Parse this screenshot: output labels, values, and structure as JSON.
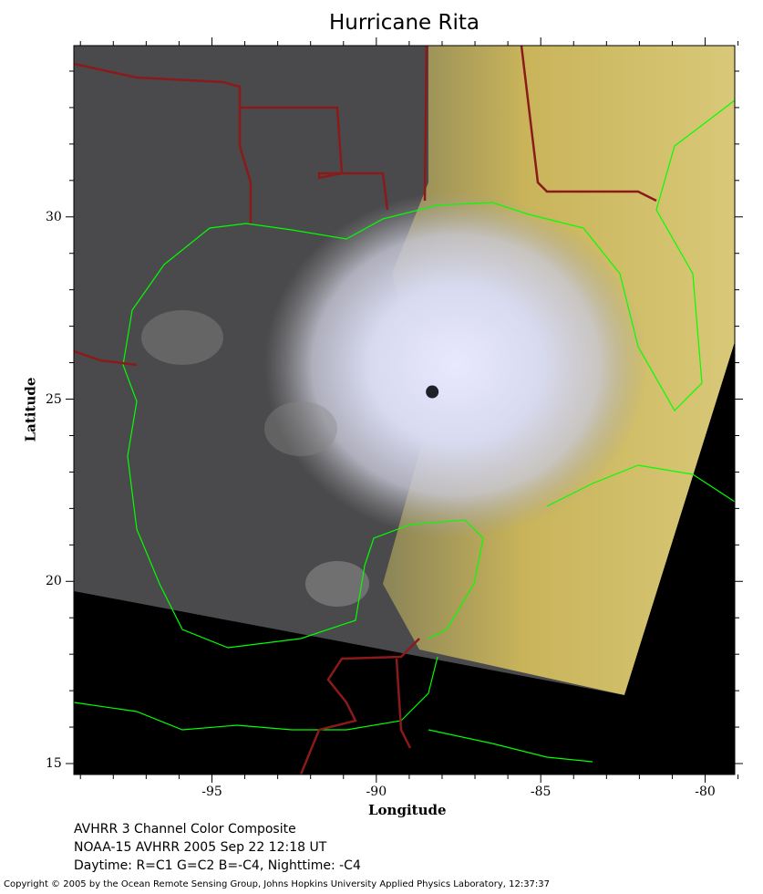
{
  "title": "Hurricane Rita",
  "axes": {
    "xlabel": "Longitude",
    "ylabel": "Latitude",
    "x_ticks": [
      "-95",
      "-90",
      "-85",
      "-80"
    ],
    "y_ticks": [
      "30",
      "25",
      "20",
      "15"
    ],
    "x_range": [
      -99.2,
      -79.1
    ],
    "y_range": [
      14.7,
      34.7
    ]
  },
  "storm_eye": {
    "lon": -88.3,
    "lat": 25.2
  },
  "caption": {
    "line1": "AVHRR 3 Channel Color Composite",
    "line2": "NOAA-15 AVHRR 2005 Sep 22 12:18 UT",
    "line3": "Daytime: R=C1 G=C2 B=-C4, Nighttime: -C4"
  },
  "copyright": "Copyright © 2005 by the Ocean Remote Sensing Group, Johns Hopkins University Applied Physics Laboratory, 12:37:37",
  "colors": {
    "coastline": "#00ff00",
    "borders": "#8b1a1a",
    "no_data": "#000000"
  }
}
